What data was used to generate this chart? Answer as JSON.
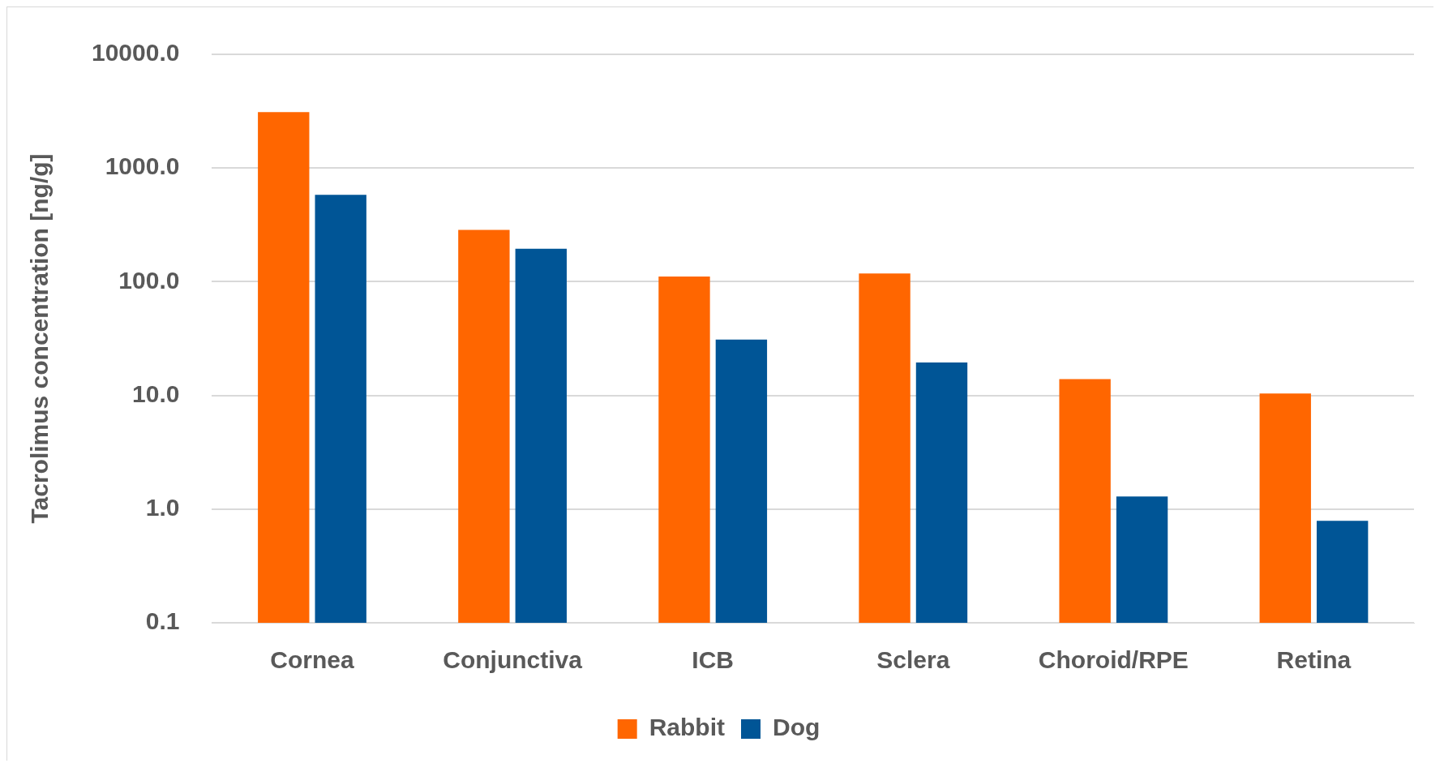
{
  "chart_data": {
    "type": "bar",
    "ylabel": "Tacrolimus concentration [ng/g]",
    "categories": [
      "Cornea",
      "Conjunctiva",
      "ICB",
      "Sclera",
      "Choroid/RPE",
      "Retina"
    ],
    "series": [
      {
        "name": "Rabbit",
        "color": "#ff6600",
        "values": [
          3100,
          286,
          111,
          118,
          13.9,
          10.4
        ]
      },
      {
        "name": "Dog",
        "color": "#005596",
        "values": [
          580,
          195,
          31,
          19.5,
          1.29,
          0.79
        ]
      }
    ],
    "log": true,
    "ylim": [
      0.1,
      10000
    ],
    "yticks": [
      {
        "value": 0.1,
        "label": "0.1"
      },
      {
        "value": 1,
        "label": "1.0"
      },
      {
        "value": 10,
        "label": "10.0"
      },
      {
        "value": 100,
        "label": "100.0"
      },
      {
        "value": 1000,
        "label": "1000.0"
      },
      {
        "value": 10000,
        "label": "10000.0"
      }
    ],
    "grid": "y",
    "legend": "bottom"
  }
}
